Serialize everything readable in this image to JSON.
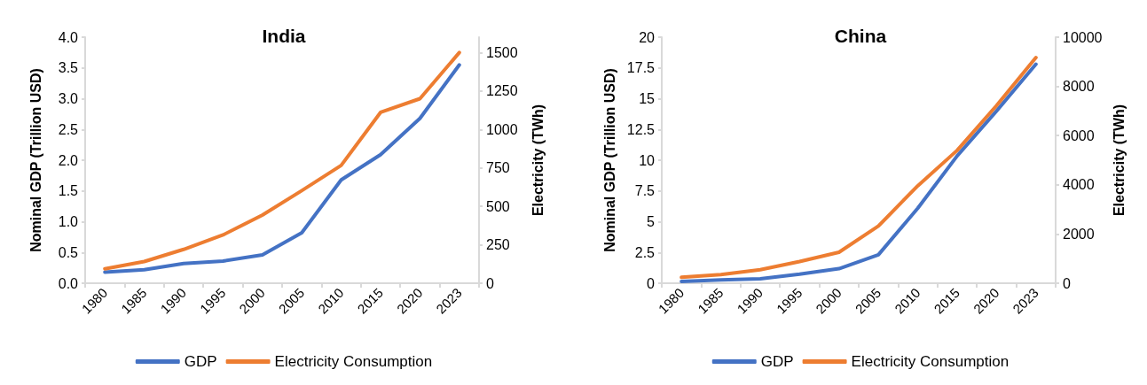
{
  "chart_data": [
    {
      "type": "line",
      "title": "India",
      "ylabel": "Nominal GDP (Trillion USD)",
      "y2label": "Electricity (TWh)",
      "categories": [
        "1980",
        "1985",
        "1990",
        "1995",
        "2000",
        "2005",
        "2010",
        "2015",
        "2020",
        "2023"
      ],
      "series": [
        {
          "name": "GDP",
          "color": "#4472c4",
          "values": [
            0.18,
            0.22,
            0.32,
            0.36,
            0.46,
            0.82,
            1.68,
            2.09,
            2.68,
            3.55
          ]
        },
        {
          "name": "Electricity Consumption",
          "color": "#ed7d31",
          "axis": "y2",
          "values": [
            94,
            141,
            220,
            314,
            443,
            602,
            766,
            1111,
            1200,
            1500
          ]
        }
      ],
      "ylim": [
        0,
        4
      ],
      "yticks": [
        {
          "value": 0,
          "label": "0.0"
        },
        0.5,
        {
          "value": 1,
          "label": "1.0"
        },
        1.5,
        {
          "value": 2,
          "label": "2.0"
        },
        2.5,
        {
          "value": 3,
          "label": "3.0"
        },
        3.5,
        {
          "value": 4,
          "label": "4.0"
        }
      ],
      "y2lim": [
        0,
        1600
      ],
      "y2ticks": [
        0,
        250,
        500,
        750,
        1000,
        1250,
        1500
      ],
      "grid": false,
      "legend": "bottom",
      "marker": "none",
      "line_style": "solid"
    },
    {
      "type": "line",
      "title": "China",
      "ylabel": "Nominal GDP (Trillion USD)",
      "y2label": "Electricity (TWh)",
      "categories": [
        "1980",
        "1985",
        "1990",
        "1995",
        "2000",
        "2005",
        "2010",
        "2015",
        "2020",
        "2023"
      ],
      "series": [
        {
          "name": "GDP",
          "color": "#4472c4",
          "values": [
            0.15,
            0.27,
            0.36,
            0.73,
            1.18,
            2.31,
            6.1,
            10.35,
            14.0,
            17.8
          ]
        },
        {
          "name": "Electricity Consumption",
          "color": "#ed7d31",
          "axis": "y2",
          "values": [
            243,
            349,
            546,
            880,
            1259,
            2322,
            3960,
            5400,
            7220,
            9170
          ]
        }
      ],
      "ylim": [
        0,
        20
      ],
      "yticks": [
        0,
        2.5,
        5,
        7.5,
        10,
        12.5,
        15,
        17.5,
        20
      ],
      "y2lim": [
        0,
        10000
      ],
      "y2ticks": [
        0,
        2000,
        4000,
        6000,
        8000,
        10000
      ],
      "grid": false,
      "legend": "bottom",
      "marker": "none",
      "line_style": "solid"
    }
  ]
}
